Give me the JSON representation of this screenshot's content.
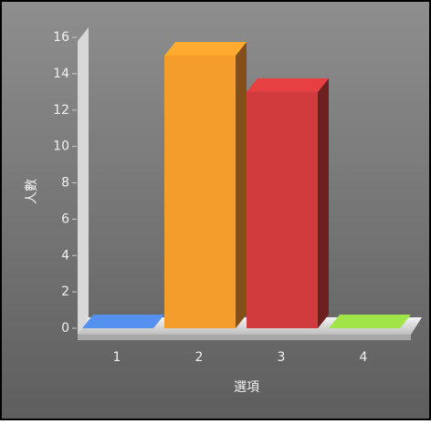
{
  "chart_data": {
    "type": "bar3d",
    "categories": [
      "1",
      "2",
      "3",
      "4"
    ],
    "values": [
      0,
      15,
      13,
      0
    ],
    "colors": [
      "#4a7fd0",
      "#e8952a",
      "#c8383a",
      "#8cc63f"
    ],
    "ylim": [
      0,
      16
    ],
    "yticks": [
      0,
      2,
      4,
      6,
      8,
      10,
      12,
      14,
      16
    ],
    "xlabel": "選項",
    "ylabel": "人數"
  }
}
